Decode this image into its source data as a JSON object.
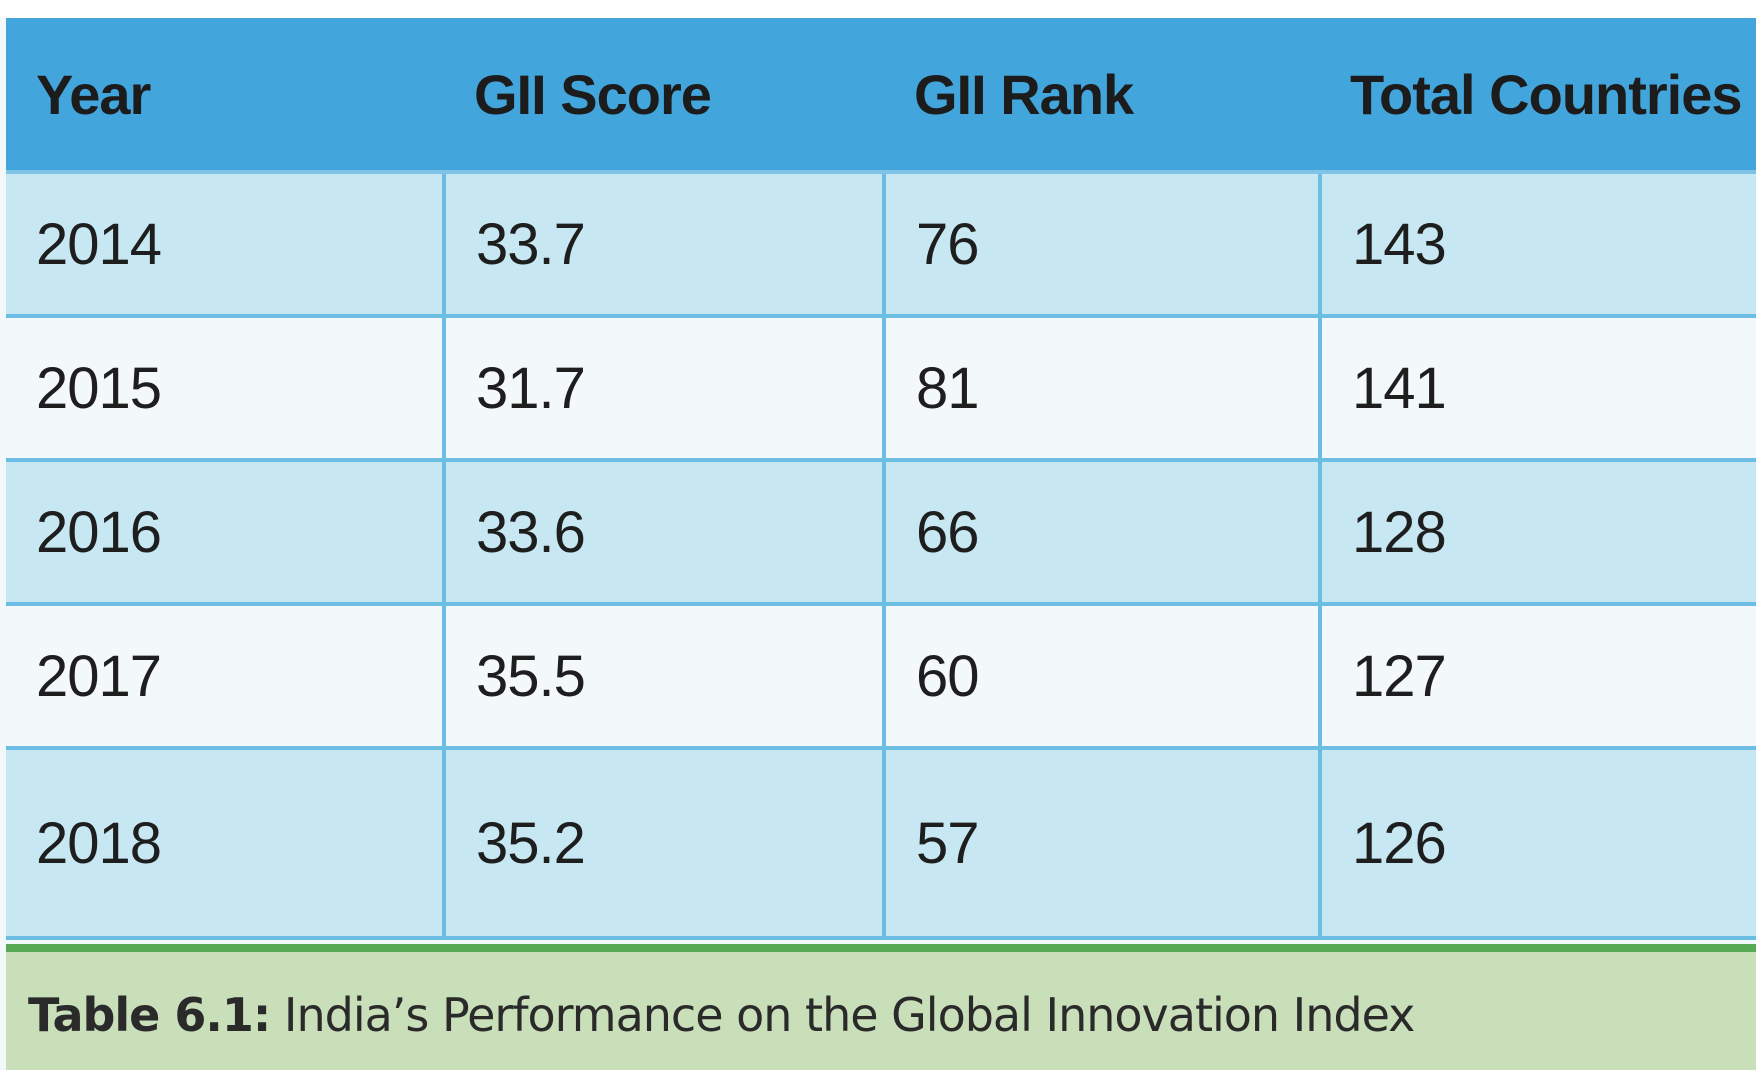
{
  "chart_data": {
    "type": "table",
    "columns": [
      "Year",
      "GII Score",
      "GII Rank",
      "Total Countries"
    ],
    "rows": [
      [
        "2014",
        "33.7",
        "76",
        "143"
      ],
      [
        "2015",
        "31.7",
        "81",
        "141"
      ],
      [
        "2016",
        "33.6",
        "66",
        "128"
      ],
      [
        "2017",
        "35.5",
        "60",
        "127"
      ],
      [
        "2018",
        "35.2",
        "57",
        "126"
      ]
    ],
    "caption_label": "Table 6.1:",
    "caption_text": " India’s Performance on the Global Innovation Index"
  },
  "colors": {
    "header_bg": "#42a5dc",
    "row_shaded": "#c7e8f2",
    "row_light": "#f3f9fb",
    "caption_bg": "#c9dfb9",
    "caption_rule": "#57a955"
  }
}
